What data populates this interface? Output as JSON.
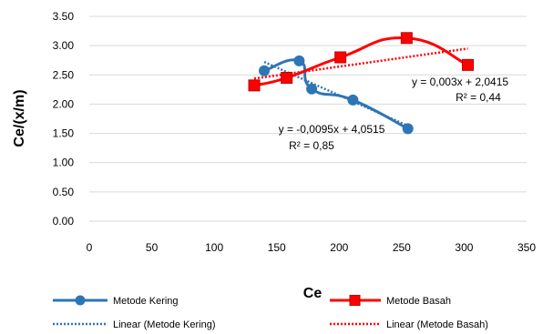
{
  "chart_data": {
    "type": "scatter",
    "xlabel": "Ce",
    "ylabel": "Ce/(x/m)",
    "xlim": [
      0,
      350
    ],
    "ylim": [
      0,
      3.5
    ],
    "x_ticks": [
      "0",
      "50",
      "100",
      "150",
      "200",
      "250",
      "300",
      "350"
    ],
    "y_ticks": [
      "0.00",
      "0.50",
      "1.00",
      "1.50",
      "2.00",
      "2.50",
      "3.00",
      "3.50"
    ],
    "grid": "horizontal",
    "legend_position": "bottom",
    "series": [
      {
        "name": "Metode Kering",
        "color": "#2e75b6",
        "marker": "circle",
        "line": "smooth",
        "x": [
          140,
          168,
          178,
          211,
          255
        ],
        "y": [
          2.57,
          2.74,
          2.26,
          2.07,
          1.58
        ]
      },
      {
        "name": "Metode Basah",
        "color": "#ff0000",
        "marker": "square",
        "line": "smooth",
        "x": [
          132,
          158,
          201,
          254,
          303
        ],
        "y": [
          2.32,
          2.45,
          2.8,
          3.13,
          2.67
        ]
      }
    ],
    "trendlines": [
      {
        "name": "Linear (Metode Kering)",
        "color": "#2e75b6",
        "style": "dotted",
        "slope": -0.0095,
        "intercept": 4.0515,
        "x_range": [
          140,
          255
        ],
        "equation": "y = -0,0095x + 4,0515",
        "r2": "R² = 0,85"
      },
      {
        "name": "Linear (Metode Basah)",
        "color": "#ff0000",
        "style": "dotted",
        "slope": 0.003,
        "intercept": 2.0415,
        "x_range": [
          132,
          303
        ],
        "equation": "y = 0,003x + 2,0415",
        "r2": "R² = 0,44"
      }
    ]
  }
}
